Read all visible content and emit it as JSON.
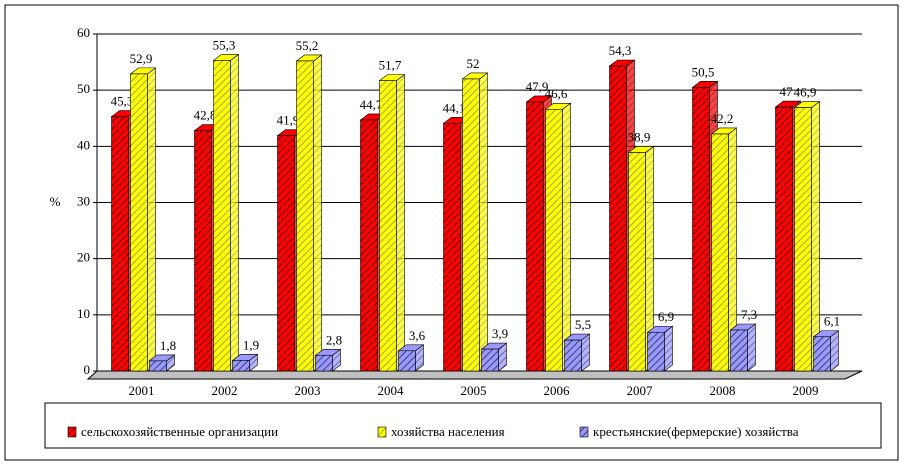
{
  "chart_data": {
    "type": "bar3d",
    "y_label": "%",
    "categories": [
      "2001",
      "2002",
      "2003",
      "2004",
      "2005",
      "2006",
      "2007",
      "2008",
      "2009"
    ],
    "series": [
      {
        "name": "сельскохозяйственные организации",
        "color": "#ff0000",
        "values": [
          45.3,
          42.8,
          41.9,
          44.7,
          44.1,
          47.9,
          54.3,
          50.5,
          47
        ],
        "value_labels": [
          "45,3",
          "42,8",
          "41,9",
          "44,7",
          "44,1",
          "47,9",
          "54,3",
          "50,5",
          "47"
        ]
      },
      {
        "name": "хозяйства населения",
        "color": "#ffff00",
        "values": [
          52.9,
          55.3,
          55.2,
          51.7,
          52,
          46.6,
          38.9,
          42.2,
          46.9
        ],
        "value_labels": [
          "52,9",
          "55,3",
          "55,2",
          "51,7",
          "52",
          "46,6",
          "38,9",
          "42,2",
          "46,9"
        ]
      },
      {
        "name": "крестьянские(фермерские) хозяйства",
        "color": "#9999ff",
        "values": [
          1.8,
          1.9,
          2.8,
          3.6,
          3.9,
          5.5,
          6.9,
          7.3,
          6.1
        ],
        "value_labels": [
          "1,8",
          "1,9",
          "2,8",
          "3,6",
          "3,9",
          "5,5",
          "6,9",
          "7,3",
          "6,1"
        ]
      }
    ],
    "ylim": [
      0,
      60
    ],
    "yticks": [
      0,
      10,
      20,
      30,
      40,
      50,
      60
    ],
    "grid": true,
    "legend": "bottom"
  }
}
